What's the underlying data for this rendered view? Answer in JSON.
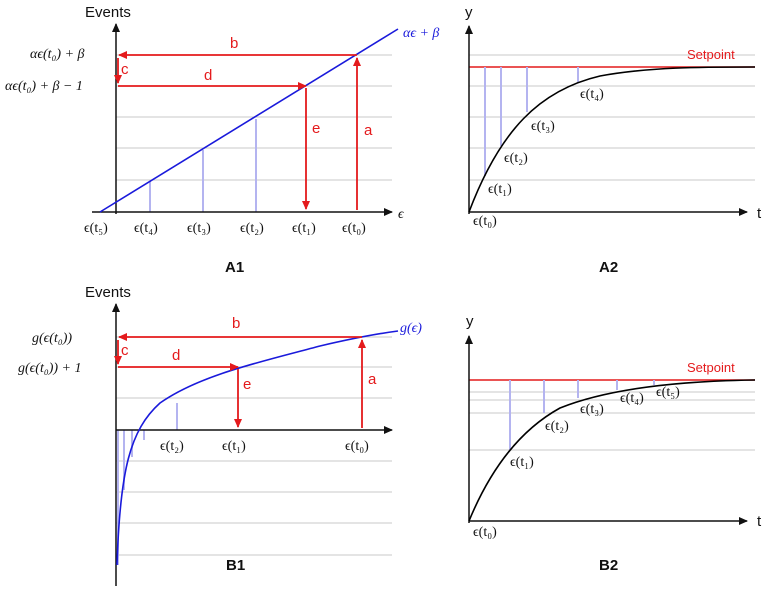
{
  "panels": {
    "A1": {
      "label": "A1",
      "y_axis_label": "Events",
      "x_axis_label": "ϵ",
      "curve_label": "αϵ + β",
      "y_label_top": "αϵ(t₀) + β",
      "y_label_mid": "αϵ(t₀) + β − 1",
      "x_ticks": [
        "ϵ(t₅)",
        "ϵ(t₄)",
        "ϵ(t₃)",
        "ϵ(t₂)",
        "ϵ(t₁)",
        "ϵ(t₀)"
      ],
      "arrow_labels": {
        "a": "a",
        "b": "b",
        "c": "c",
        "d": "d",
        "e": "e"
      }
    },
    "A2": {
      "label": "A2",
      "y_axis_label": "y",
      "x_axis_label": "t",
      "setpoint_label": "Setpoint",
      "point_labels": [
        "ϵ(t₀)",
        "ϵ(t₁)",
        "ϵ(t₂)",
        "ϵ(t₃)",
        "ϵ(t₄)"
      ]
    },
    "B1": {
      "label": "B1",
      "y_axis_label": "Events",
      "curve_label": "g(ϵ)",
      "y_label_top": "g(ϵ(t₀))",
      "y_label_mid": "g(ϵ(t₀)) + 1",
      "x_ticks": [
        "ϵ(t₂)",
        "ϵ(t₁)",
        "ϵ(t₀)"
      ],
      "arrow_labels": {
        "a": "a",
        "b": "b",
        "c": "c",
        "d": "d",
        "e": "e"
      }
    },
    "B2": {
      "label": "B2",
      "y_axis_label": "y",
      "x_axis_label": "t",
      "setpoint_label": "Setpoint",
      "point_labels": [
        "ϵ(t₀)",
        "ϵ(t₁)",
        "ϵ(t₂)",
        "ϵ(t₃)",
        "ϵ(t₄)",
        "ϵ(t₅)"
      ]
    }
  },
  "colors": {
    "axis": "#111111",
    "arrow": "#e41a1c",
    "curve_linear": "#1a1adb",
    "curve_log": "#1a1adb",
    "response": "#000000",
    "setpoint": "#e41a1c",
    "grid": "#c8c8c8",
    "stems": "#b4b4f0"
  }
}
